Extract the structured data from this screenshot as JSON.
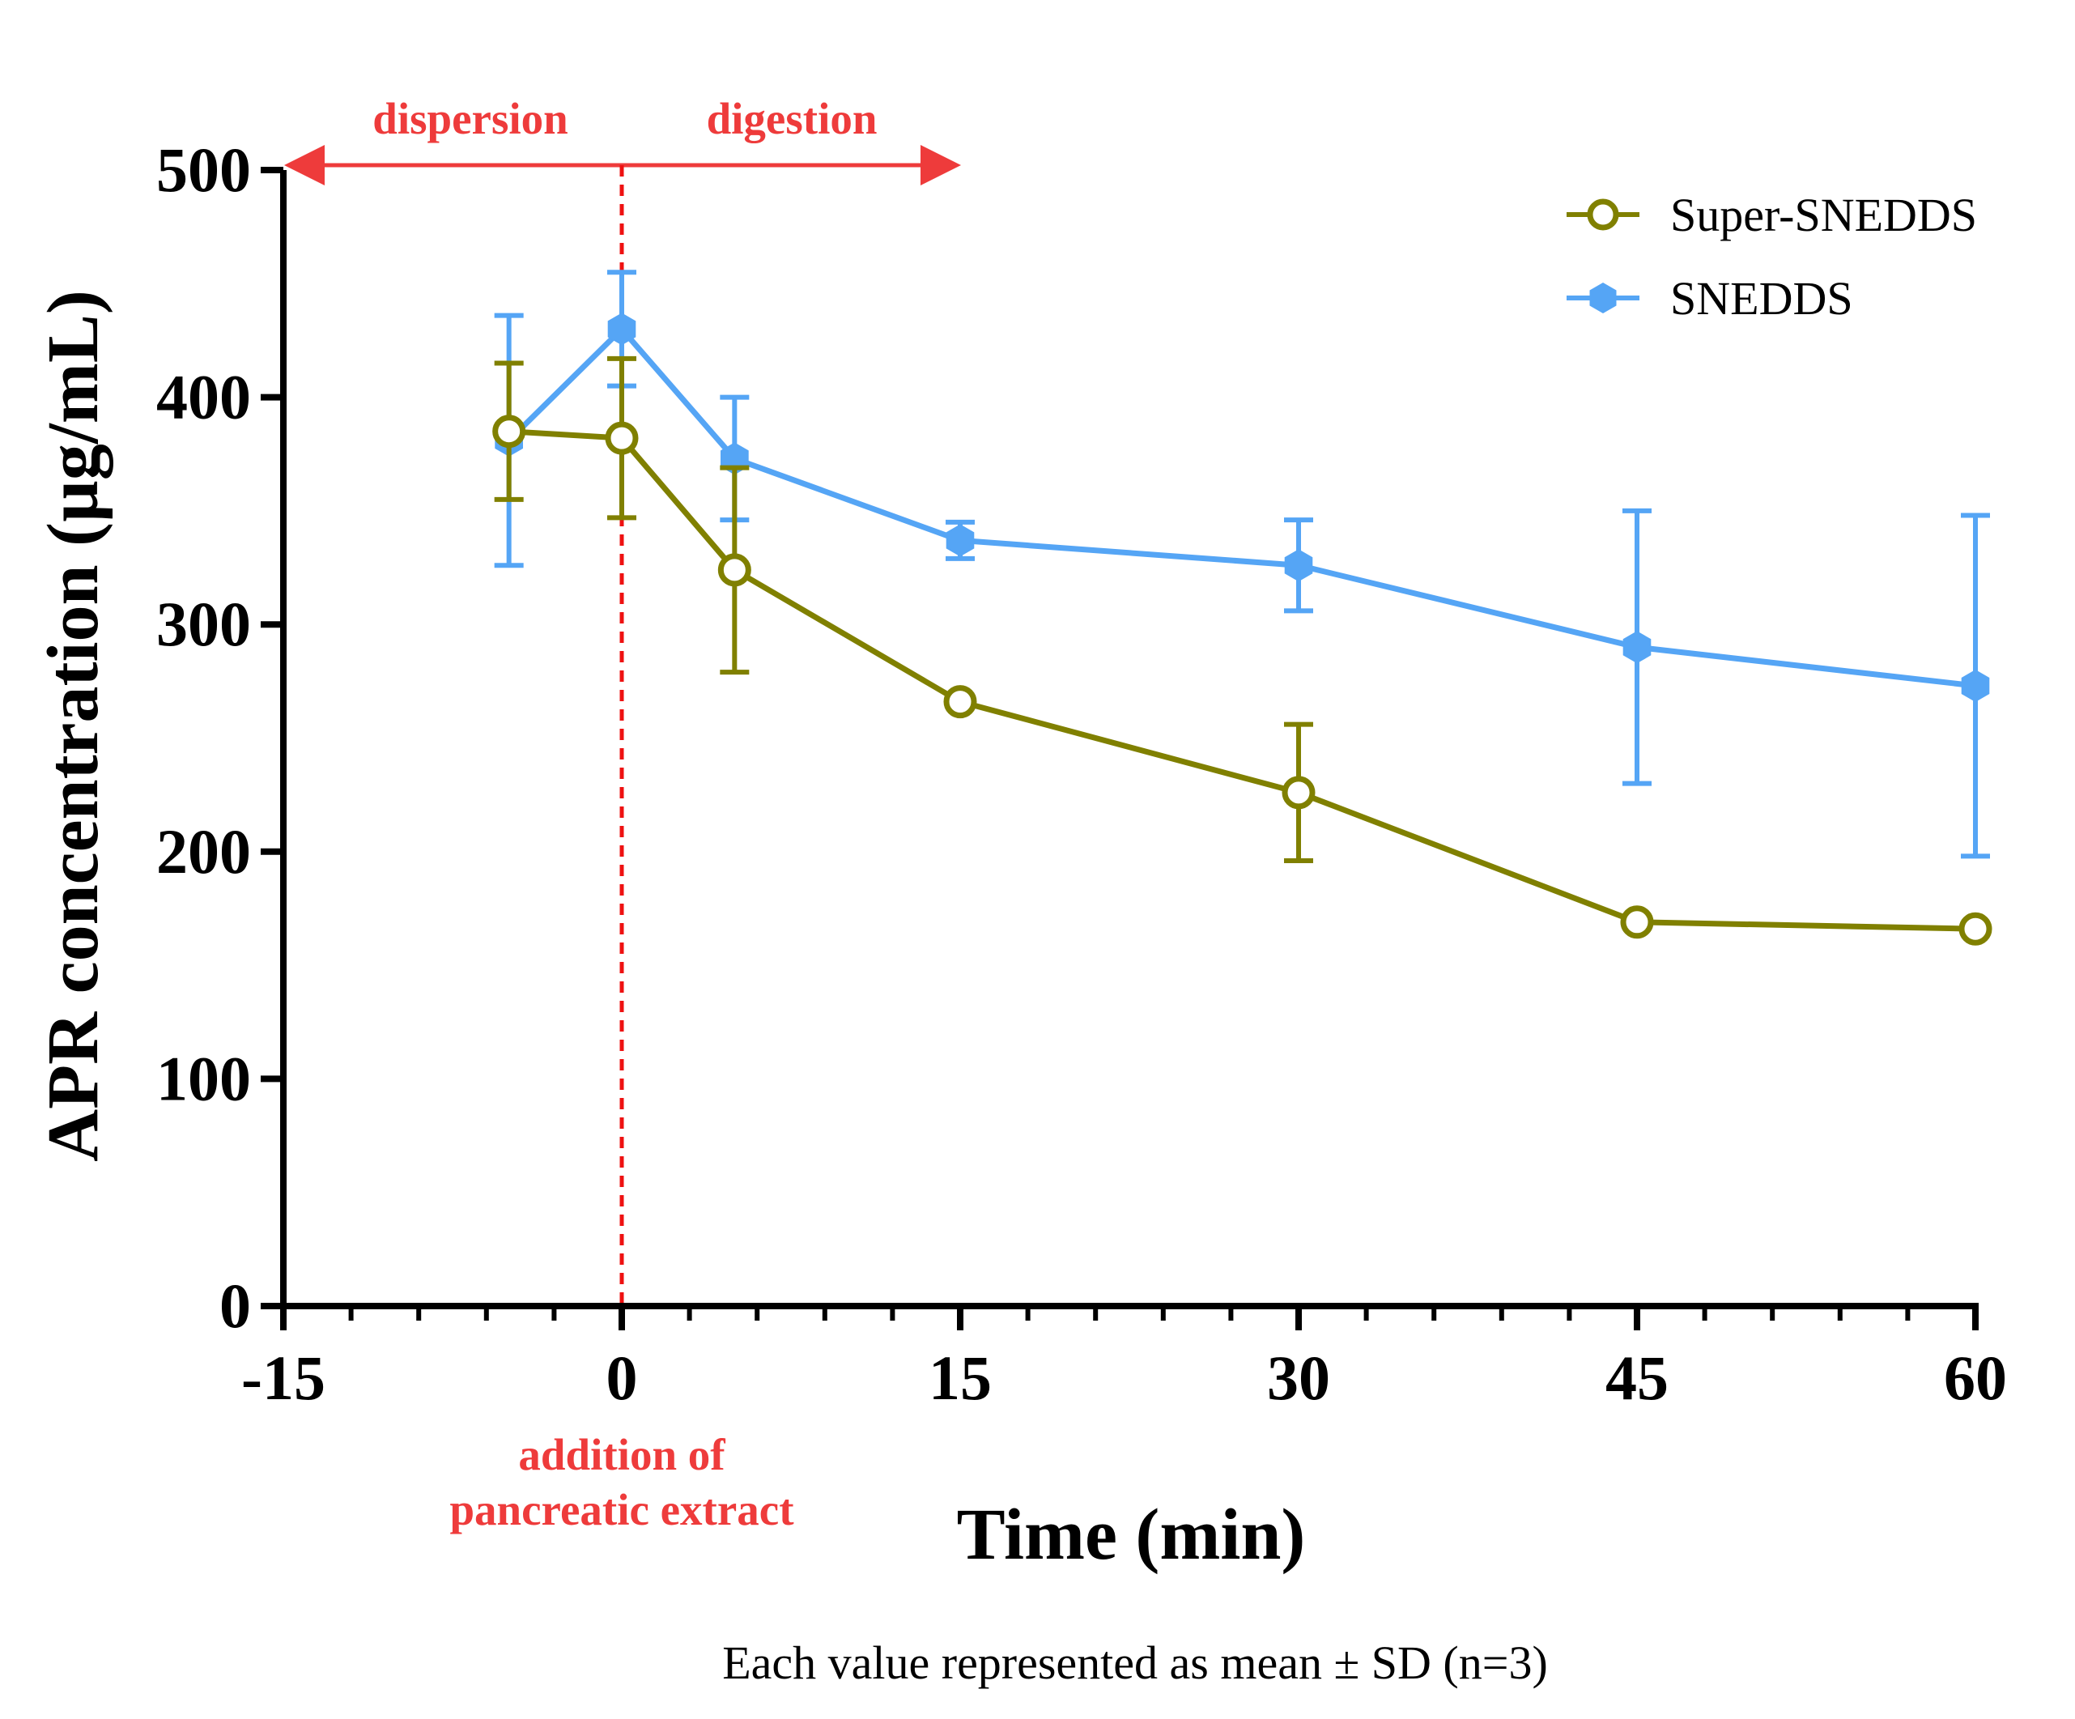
{
  "chart_data": {
    "type": "line",
    "title": "",
    "xlabel": "Time (min)",
    "ylabel": "APR concentration (µg/mL)",
    "xlim": [
      -15,
      60
    ],
    "ylim": [
      0,
      500
    ],
    "x_ticks": [
      -15,
      0,
      15,
      30,
      45,
      60
    ],
    "x_tick_labels": [
      "-15",
      "0",
      "15",
      "30",
      "45",
      "60"
    ],
    "x_minor_step": 3,
    "y_ticks": [
      0,
      100,
      200,
      300,
      400,
      500
    ],
    "y_tick_labels": [
      "0",
      "100",
      "200",
      "300",
      "400",
      "500"
    ],
    "grid": false,
    "legend_position": "top-right",
    "series": [
      {
        "name": "Super-SNEDDS",
        "color": "#808000",
        "marker": "open-circle",
        "x": [
          -5,
          0,
          5,
          15,
          30,
          45,
          60
        ],
        "values": [
          385,
          382,
          324,
          266,
          226,
          169,
          166
        ],
        "error": [
          30,
          35,
          45,
          0,
          30,
          0,
          0
        ]
      },
      {
        "name": "SNEDDS",
        "color": "#55A5F5",
        "marker": "filled-hexagon",
        "x": [
          -5,
          0,
          5,
          15,
          30,
          45,
          60
        ],
        "values": [
          381,
          430,
          373,
          337,
          326,
          290,
          273
        ],
        "error": [
          55,
          25,
          27,
          8,
          20,
          60,
          75
        ]
      }
    ],
    "annotations": {
      "dispersion": "dispersion",
      "digestion": "digestion",
      "addition_line1": "addition of",
      "addition_line2": "pancreatic extract",
      "annotation_color": "#EE3B3B",
      "phase_boundary_x": 0,
      "digestion_arrow_end_x": 15
    },
    "footnote": "Each value represented as mean ± SD (n=3)"
  }
}
